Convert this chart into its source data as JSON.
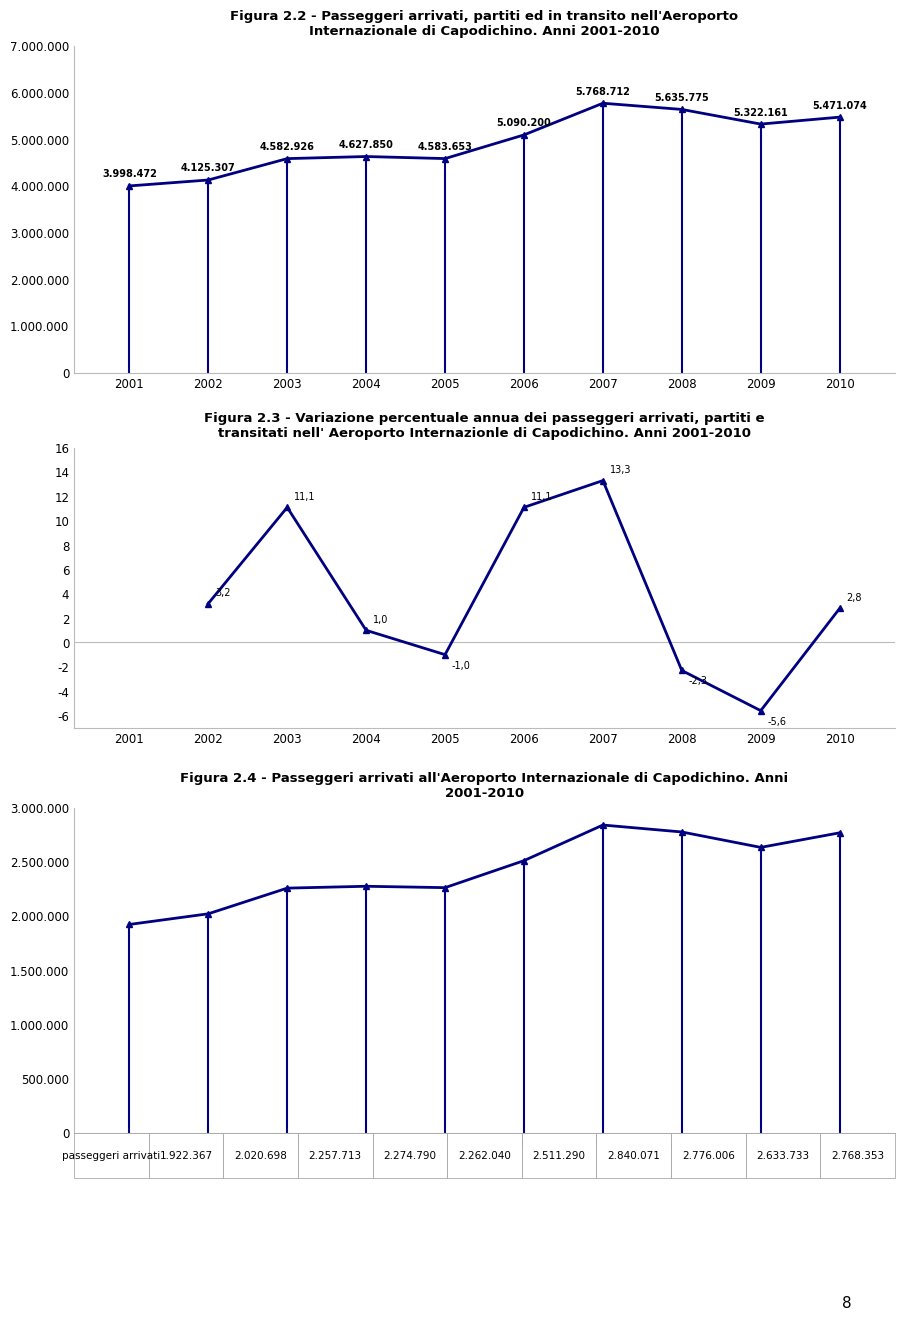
{
  "fig1": {
    "title_line1": "Figura 2.2 - Passeggeri arrivati, partiti ed in transito nell'Aeroporto",
    "title_line2": "Internazionale di Capodichino. Anni 2001-2010",
    "years": [
      2001,
      2002,
      2003,
      2004,
      2005,
      2006,
      2007,
      2008,
      2009,
      2010
    ],
    "values": [
      3998472,
      4125307,
      4582926,
      4627850,
      4583653,
      5090200,
      5768712,
      5635775,
      5322161,
      5471074
    ],
    "labels": [
      "3.998.472",
      "4.125.307",
      "4.582.926",
      "4.627.850",
      "4.583.653",
      "5.090.200",
      "5.768.712",
      "5.635.775",
      "5.322.161",
      "5.471.074"
    ],
    "ylim": [
      0,
      7000000
    ],
    "yticks": [
      0,
      1000000,
      2000000,
      3000000,
      4000000,
      5000000,
      6000000,
      7000000
    ],
    "ytick_labels": [
      "0",
      "1.000.000",
      "2.000.000",
      "3.000.000",
      "4.000.000",
      "5.000.000",
      "6.000.000",
      "7.000.000"
    ]
  },
  "fig2": {
    "title_line1": "Figura 2.3 - Variazione percentuale annua dei passeggeri arrivati, partiti e",
    "title_line2": "transitati nell' Aeroporto Internazionle di Capodichino. Anni 2001-2010",
    "years": [
      2001,
      2002,
      2003,
      2004,
      2005,
      2006,
      2007,
      2008,
      2009,
      2010
    ],
    "values": [
      null,
      3.2,
      11.1,
      1.0,
      -1.0,
      11.1,
      13.3,
      -2.3,
      -5.6,
      2.8
    ],
    "labels": [
      "",
      "3,2",
      "11,1",
      "1,0",
      "-1,0",
      "11,1",
      "13,3",
      "-2,3",
      "-5,6",
      "2,8"
    ],
    "ylim": [
      -7,
      16
    ],
    "yticks": [
      -6,
      -4,
      -2,
      0,
      2,
      4,
      6,
      8,
      10,
      12,
      14,
      16
    ]
  },
  "fig3": {
    "title_line1": "Figura 2.4 - Passeggeri arrivati all'Aeroporto Internazionale di Capodichino. Anni",
    "title_line2": "2001-2010",
    "years": [
      2001,
      2002,
      2003,
      2004,
      2005,
      2006,
      2007,
      2008,
      2009,
      2010
    ],
    "values": [
      1922367,
      2020698,
      2257713,
      2274790,
      2262040,
      2511290,
      2840071,
      2776006,
      2633733,
      2768353
    ],
    "ylim": [
      0,
      3000000
    ],
    "yticks": [
      0,
      500000,
      1000000,
      1500000,
      2000000,
      2500000,
      3000000
    ],
    "ytick_labels": [
      "0",
      "500.000",
      "1.000.000",
      "1.500.000",
      "2.000.000",
      "2.500.000",
      "3.000.000"
    ],
    "table_row_label": "passeggeri arrivati",
    "table_values": [
      "1.922.367",
      "2.020.698",
      "2.257.713",
      "2.274.790",
      "2.262.040",
      "2.511.290",
      "2.840.071",
      "2.776.006",
      "2.633.733",
      "2.768.353"
    ]
  },
  "line_color": "#000080",
  "marker_size": 5,
  "line_width": 2.0,
  "bg_color": "#ffffff",
  "axis_color": "#bbbbbb",
  "font_color": "#000000",
  "page_number": "8"
}
